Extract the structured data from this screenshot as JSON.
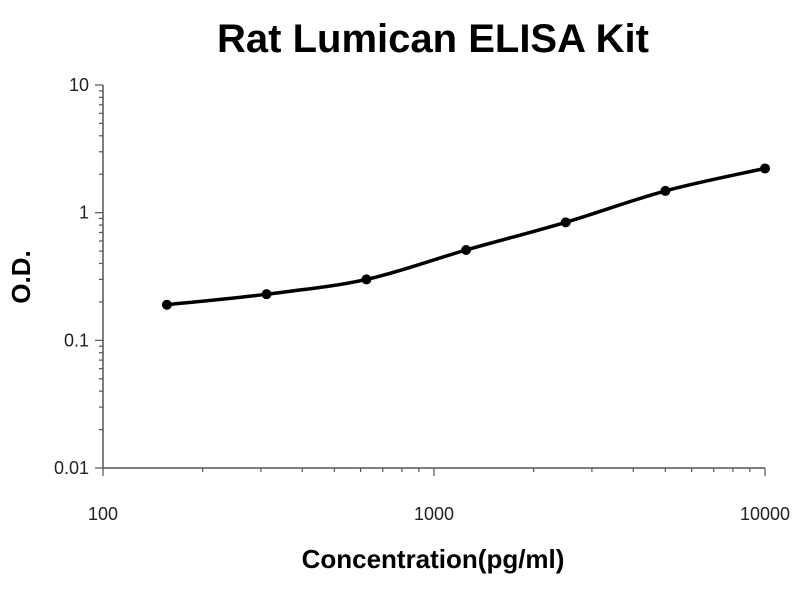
{
  "chart_data": {
    "type": "scatter",
    "title": "Rat Lumican ELISA Kit",
    "xlabel": "Concentration(pg/ml)",
    "ylabel": "O.D.",
    "xscale": "log",
    "yscale": "log",
    "xlim": [
      100,
      10000
    ],
    "ylim": [
      0.01,
      10
    ],
    "x_ticks": [
      "100",
      "1000",
      "10000"
    ],
    "y_ticks": [
      "0.01",
      "0.1",
      "1",
      "10"
    ],
    "grid": false,
    "fit_line": true,
    "series": [
      {
        "x": [
          156,
          312,
          625,
          1250,
          2500,
          5000,
          10000
        ],
        "y": [
          0.19,
          0.23,
          0.3,
          0.51,
          0.84,
          1.48,
          2.22
        ]
      }
    ]
  }
}
